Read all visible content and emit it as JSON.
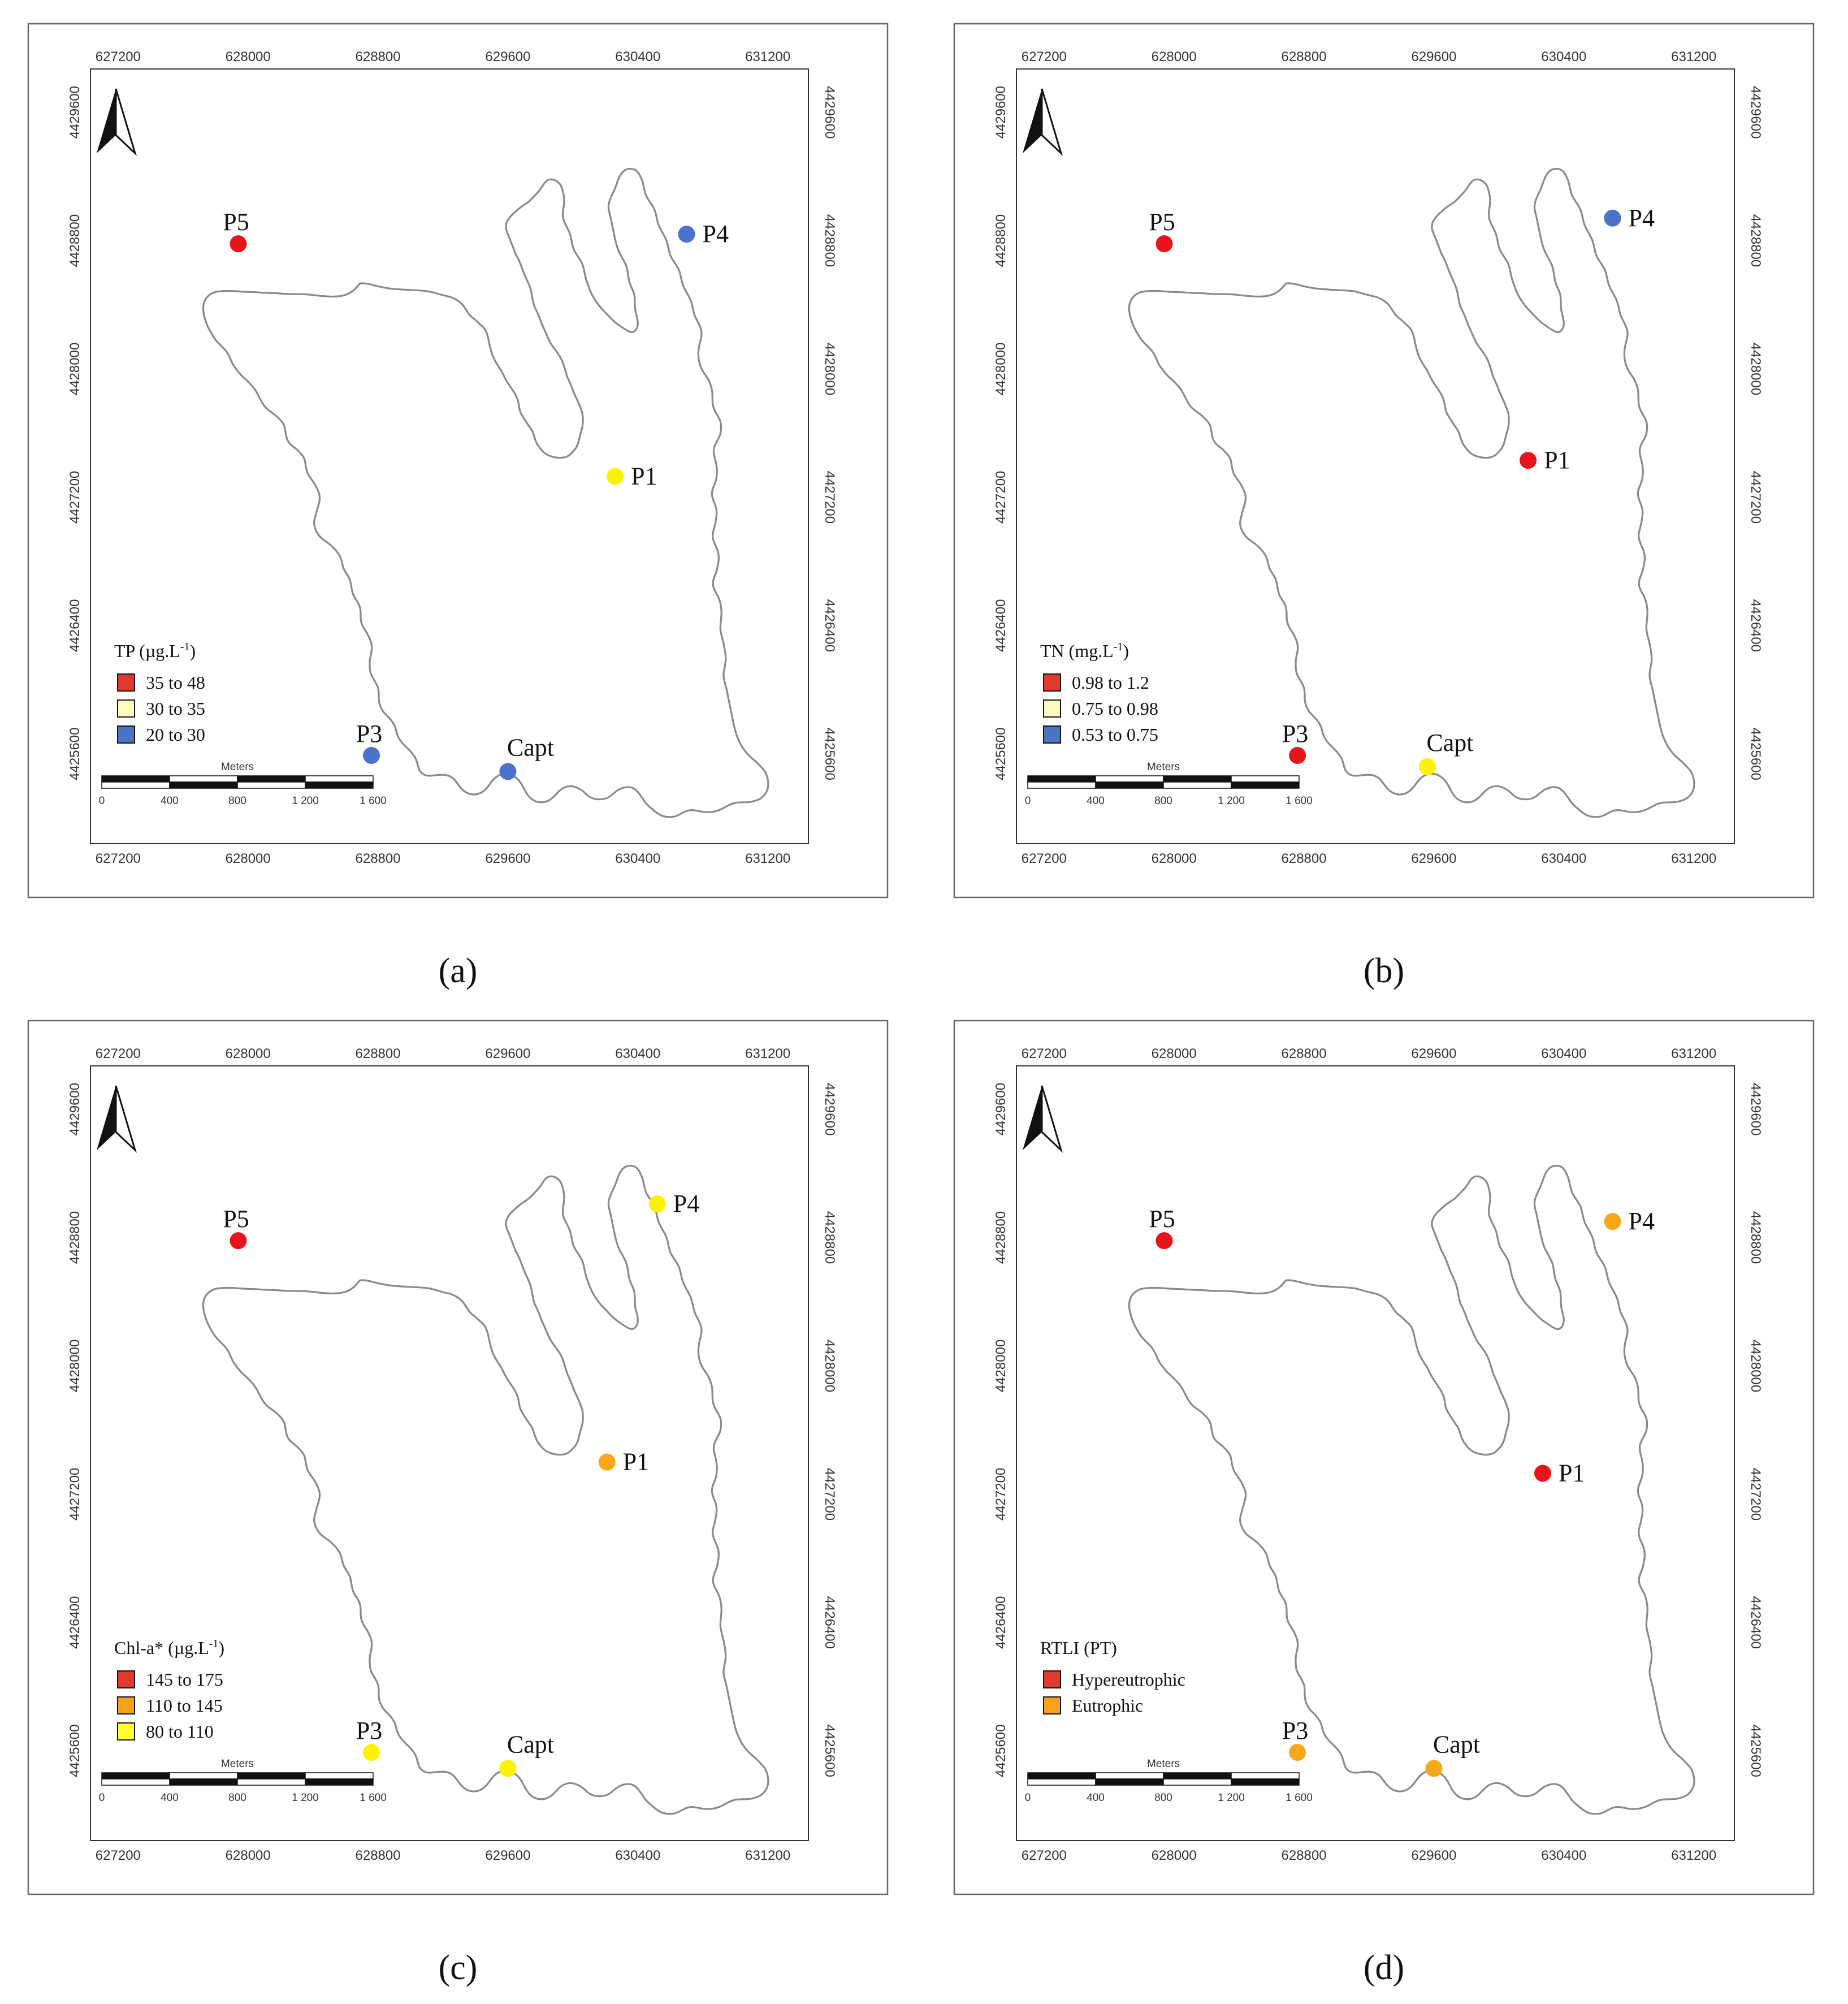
{
  "x_ticks": [
    "627200",
    "628000",
    "628800",
    "629600",
    "630400",
    "631200"
  ],
  "y_ticks": [
    "4429600",
    "4428800",
    "4428000",
    "4427200",
    "4426400",
    "4425600"
  ],
  "scalebar": {
    "title": "Meters",
    "labels": [
      "0",
      "400",
      "800",
      "1 200",
      "1 600"
    ]
  },
  "panels": [
    {
      "caption": "(a)",
      "legend_title": "TP (µg.L",
      "legend_sup": "-1",
      "legend_close": ")",
      "legend": [
        {
          "label": "35 to 48",
          "color": "#e03a2f"
        },
        {
          "label": "30 to 35",
          "color": "#fffbbe"
        },
        {
          "label": "20 to 30",
          "color": "#4a73c0"
        }
      ],
      "points": [
        {
          "name": "P5",
          "color": "#e8141b",
          "x": 627940,
          "y": 4428780
        },
        {
          "name": "P4",
          "color": "#4a73c9",
          "x": 630700,
          "y": 4428840
        },
        {
          "name": "P1",
          "color": "#fff200",
          "x": 630260,
          "y": 4427330
        },
        {
          "name": "P3",
          "color": "#4a73c9",
          "x": 628760,
          "y": 4425590
        },
        {
          "name": "Capt",
          "color": "#4a73c9",
          "x": 629600,
          "y": 4425490
        }
      ]
    },
    {
      "caption": "(b)",
      "legend_title": "TN (mg.L",
      "legend_sup": "-1",
      "legend_close": ")",
      "legend": [
        {
          "label": "0.98 to 1.2",
          "color": "#e03a2f"
        },
        {
          "label": "0.75 to 0.98",
          "color": "#fffbbe"
        },
        {
          "label": "0.53 to 0.75",
          "color": "#4a73c0"
        }
      ],
      "points": [
        {
          "name": "P5",
          "color": "#e8141b",
          "x": 627940,
          "y": 4428780
        },
        {
          "name": "P4",
          "color": "#4a73c9",
          "x": 630700,
          "y": 4428940
        },
        {
          "name": "P1",
          "color": "#e8141b",
          "x": 630180,
          "y": 4427430
        },
        {
          "name": "P3",
          "color": "#e8141b",
          "x": 628760,
          "y": 4425590
        },
        {
          "name": "Capt",
          "color": "#fff200",
          "x": 629560,
          "y": 4425520
        }
      ]
    },
    {
      "caption": "(c)",
      "legend_title": "Chl-a* (µg.L",
      "legend_sup": "-1",
      "legend_close": ")",
      "legend": [
        {
          "label": "145 to 175",
          "color": "#e03a2f"
        },
        {
          "label": "110 to 145",
          "color": "#f7a21c"
        },
        {
          "label": "80 to 110",
          "color": "#ffff33"
        }
      ],
      "points": [
        {
          "name": "P5",
          "color": "#e8141b",
          "x": 627940,
          "y": 4428780
        },
        {
          "name": "P4",
          "color": "#fff200",
          "x": 630520,
          "y": 4429010
        },
        {
          "name": "P1",
          "color": "#f7a81a",
          "x": 630210,
          "y": 4427400
        },
        {
          "name": "P3",
          "color": "#fff200",
          "x": 628760,
          "y": 4425590
        },
        {
          "name": "Capt",
          "color": "#fff200",
          "x": 629600,
          "y": 4425490
        }
      ]
    },
    {
      "caption": "(d)",
      "legend_title": "RTLI  (PT)",
      "legend_sup": "",
      "legend_close": "",
      "legend": [
        {
          "label": "Hypereutrophic",
          "color": "#e03a2f"
        },
        {
          "label": "Eutrophic",
          "color": "#f7a21c"
        }
      ],
      "points": [
        {
          "name": "P5",
          "color": "#e8141b",
          "x": 627940,
          "y": 4428780
        },
        {
          "name": "P4",
          "color": "#f7a81a",
          "x": 630700,
          "y": 4428900
        },
        {
          "name": "P1",
          "color": "#e8141b",
          "x": 630270,
          "y": 4427330
        },
        {
          "name": "P3",
          "color": "#f7a81a",
          "x": 628760,
          "y": 4425590
        },
        {
          "name": "Capt",
          "color": "#f7a81a",
          "x": 629600,
          "y": 4425490
        }
      ]
    }
  ]
}
